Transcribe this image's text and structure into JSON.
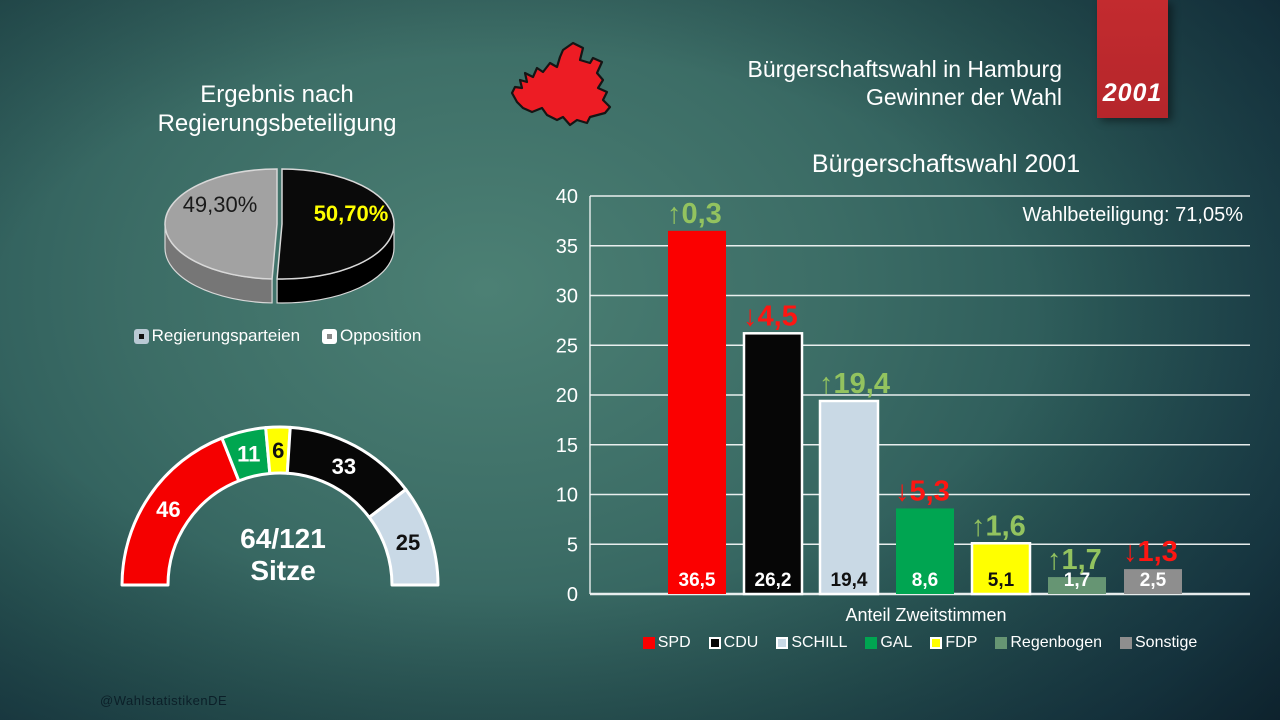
{
  "slide": {
    "title_line1": "Bürgerschaftswahl in Hamburg",
    "title_line2": "Gewinner der Wahl",
    "year_badge": "2001",
    "watermark": "@WahlstatistikenDE"
  },
  "chart_data": [
    {
      "type": "pie",
      "title": "Ergebnis nach Regierungsbeteiligung",
      "title_lines": [
        "Ergebnis nach",
        "Regierungsbeteiligung"
      ],
      "legend": [
        "Regierungsparteien",
        "Opposition"
      ],
      "slices": [
        {
          "value": 50.7,
          "display": "50,70%",
          "color": "#0a0a0a",
          "side_color": "#000000",
          "label_color": "#ffff00",
          "bold": true
        },
        {
          "value": 49.3,
          "display": "49,30%",
          "color": "#a2a2a2",
          "side_color": "#767676",
          "label_color": "#1a1a1a",
          "bold": false
        }
      ]
    },
    {
      "type": "donut",
      "shape": "half",
      "center_label": "64/121",
      "center_sublabel": "Sitze",
      "total": 121,
      "segments": [
        {
          "seats": 46,
          "color": "#f50000",
          "text_color": "#ffffff"
        },
        {
          "seats": 11,
          "color": "#00a650",
          "text_color": "#ffffff"
        },
        {
          "seats": 6,
          "color": "#ffff00",
          "text_color": "#111111"
        },
        {
          "seats": 33,
          "color": "#070707",
          "text_color": "#ffffff"
        },
        {
          "seats": 25,
          "color": "#c9d9e6",
          "text_color": "#111111"
        }
      ]
    },
    {
      "type": "bar",
      "title": "Bürgerschaftswahl 2001",
      "annotation": "Wahlbeteiligung: 71,05%",
      "xlabel": "Anteil Zweitstimmen",
      "ylim": [
        0,
        40
      ],
      "ytick_step": 5,
      "grid": true,
      "change_colors": {
        "up": "#93c35f",
        "down": "#fe1612"
      },
      "series": [
        {
          "party": "SPD",
          "value": 36.5,
          "display": "36,5",
          "color": "#fb0000",
          "border": false,
          "value_color": "#ffffff",
          "change": {
            "dir": "up",
            "display": "0,3"
          }
        },
        {
          "party": "CDU",
          "value": 26.2,
          "display": "26,2",
          "color": "#060606",
          "border": true,
          "value_color": "#ffffff",
          "change": {
            "dir": "down",
            "display": "4,5"
          }
        },
        {
          "party": "SCHILL",
          "value": 19.4,
          "display": "19,4",
          "color": "#c9d9e5",
          "border": true,
          "value_color": "#111111",
          "change": {
            "dir": "up",
            "display": "19,4"
          }
        },
        {
          "party": "GAL",
          "value": 8.6,
          "display": "8,6",
          "color": "#00a551",
          "border": false,
          "value_color": "#ffffff",
          "change": {
            "dir": "down",
            "display": "5,3"
          }
        },
        {
          "party": "FDP",
          "value": 5.1,
          "display": "5,1",
          "color": "#ffff00",
          "border": true,
          "value_color": "#111111",
          "change": {
            "dir": "up",
            "display": "1,6"
          }
        },
        {
          "party": "Regenbogen",
          "value": 1.7,
          "display": "1,7",
          "color": "#669573",
          "border": false,
          "value_color": "#ffffff",
          "change": {
            "dir": "up",
            "display": "1,7"
          }
        },
        {
          "party": "Sonstige",
          "value": 2.5,
          "display": "2,5",
          "color": "#8e8e8e",
          "border": false,
          "value_color": "#ffffff",
          "change": {
            "dir": "down",
            "display": "1,3"
          }
        }
      ]
    }
  ]
}
